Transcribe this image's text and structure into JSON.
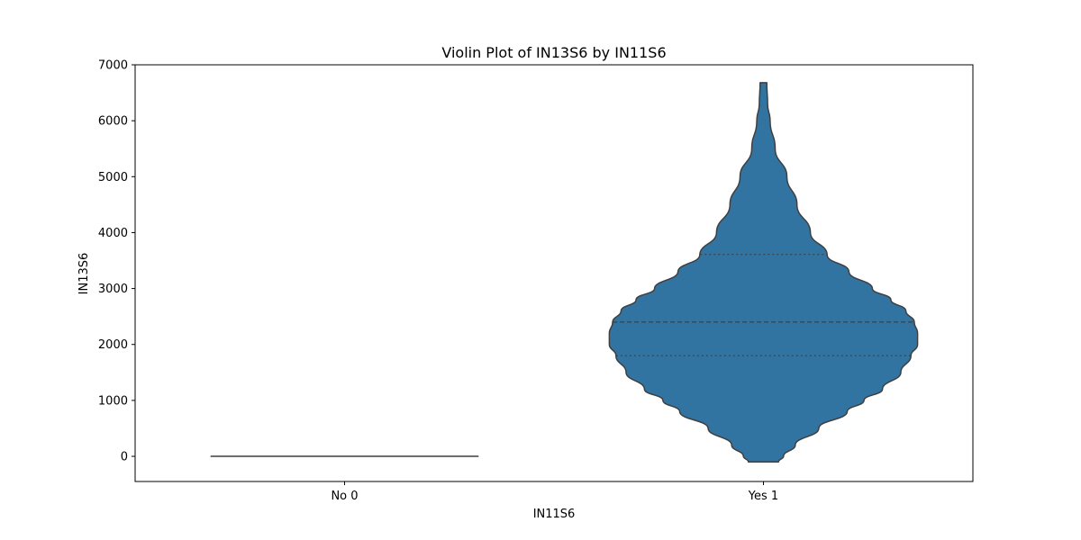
{
  "chart_data": {
    "type": "violin",
    "title": "Violin Plot of IN13S6 by IN11S6",
    "xlabel": "IN11S6",
    "ylabel": "IN13S6",
    "ylim": [
      -450,
      7000
    ],
    "yticks": [
      0,
      1000,
      2000,
      3000,
      4000,
      5000,
      6000,
      7000
    ],
    "grid": false,
    "categories": [
      "No 0",
      "Yes 1"
    ],
    "colors": {
      "violin_fill": "#3274a1",
      "violin_edge": "#3f3f3f",
      "flat_line": "#3f3f3f"
    },
    "violins": [
      {
        "category": "No 0",
        "min": 0,
        "max": 0,
        "profile": [
          [
            0,
            0.8
          ]
        ]
      },
      {
        "category": "Yes 1",
        "min": -100,
        "max": 6680,
        "quartiles": {
          "q1": 1800,
          "median": 2400,
          "q3": 3610
        },
        "profile": [
          [
            -100,
            0.09
          ],
          [
            0,
            0.12
          ],
          [
            200,
            0.19
          ],
          [
            500,
            0.33
          ],
          [
            800,
            0.5
          ],
          [
            1000,
            0.6
          ],
          [
            1200,
            0.71
          ],
          [
            1500,
            0.82
          ],
          [
            1800,
            0.88
          ],
          [
            2000,
            0.92
          ],
          [
            2200,
            0.92
          ],
          [
            2400,
            0.9
          ],
          [
            2600,
            0.85
          ],
          [
            2800,
            0.76
          ],
          [
            3000,
            0.65
          ],
          [
            3300,
            0.51
          ],
          [
            3600,
            0.38
          ],
          [
            4000,
            0.28
          ],
          [
            4500,
            0.2
          ],
          [
            5000,
            0.14
          ],
          [
            5500,
            0.07
          ],
          [
            6000,
            0.04
          ],
          [
            6300,
            0.025
          ],
          [
            6680,
            0.02
          ]
        ]
      }
    ]
  }
}
